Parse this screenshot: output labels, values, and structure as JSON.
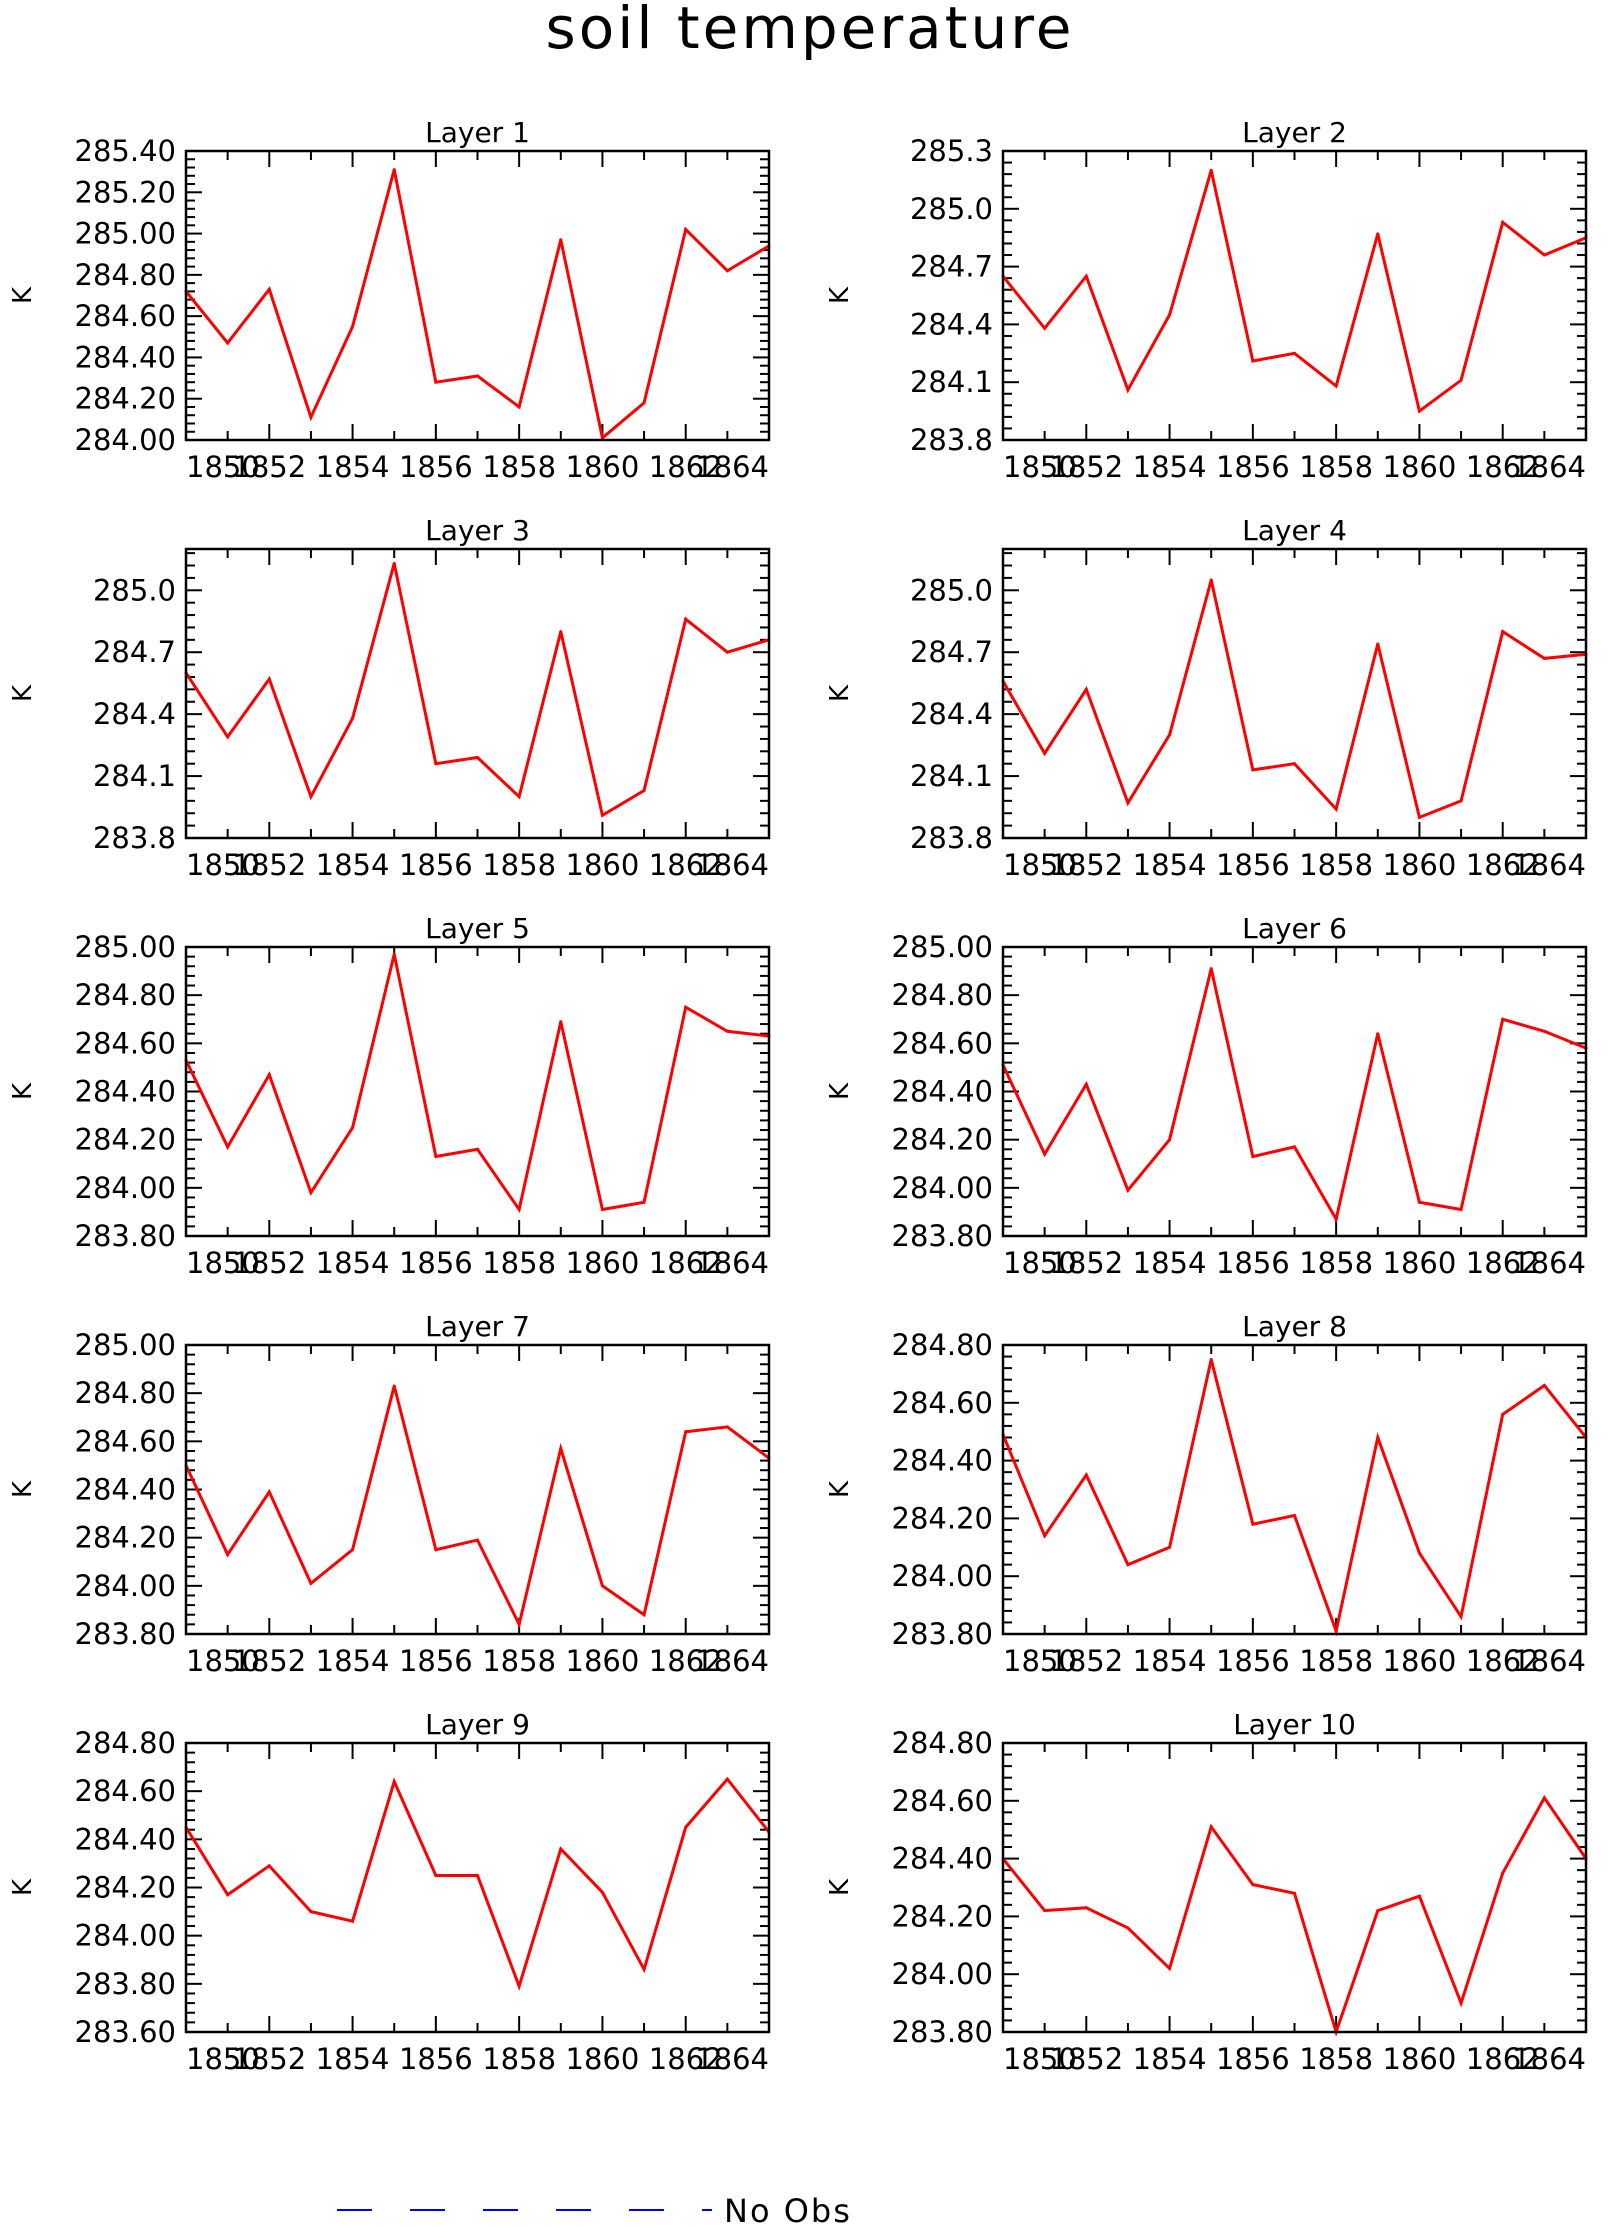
{
  "title": "soil temperature",
  "chart_data": [
    {
      "type": "line",
      "title": "Layer 1",
      "ylabel": "K",
      "x": [
        1850,
        1851,
        1852,
        1853,
        1854,
        1855,
        1856,
        1857,
        1858,
        1859,
        1860,
        1861,
        1862,
        1863,
        1864
      ],
      "series": [
        {
          "values": [
            284.72,
            284.47,
            284.73,
            284.11,
            284.55,
            285.31,
            284.28,
            284.31,
            284.16,
            284.97,
            284.01,
            284.18,
            285.02,
            284.82,
            284.94
          ]
        }
      ],
      "xlim": [
        1850,
        1864
      ],
      "xticks": [
        "1850",
        "1852",
        "1854",
        "1856",
        "1858",
        "1860",
        "1862",
        "1864"
      ],
      "ylim": [
        284.0,
        285.4
      ],
      "yticks": [
        "284.00",
        "284.20",
        "284.40",
        "284.60",
        "284.80",
        "285.00",
        "285.20",
        "285.40"
      ]
    },
    {
      "type": "line",
      "title": "Layer 2",
      "ylabel": "K",
      "x": [
        1850,
        1851,
        1852,
        1853,
        1854,
        1855,
        1856,
        1857,
        1858,
        1859,
        1860,
        1861,
        1862,
        1863,
        1864
      ],
      "series": [
        {
          "values": [
            284.65,
            284.38,
            284.65,
            284.06,
            284.45,
            285.2,
            284.21,
            284.25,
            284.08,
            284.87,
            283.95,
            284.11,
            284.93,
            284.76,
            284.85
          ]
        }
      ],
      "xlim": [
        1850,
        1864
      ],
      "xticks": [
        "1850",
        "1852",
        "1854",
        "1856",
        "1858",
        "1860",
        "1862",
        "1864"
      ],
      "ylim": [
        283.8,
        285.3
      ],
      "yticks": [
        "283.8",
        "284.1",
        "284.4",
        "284.7",
        "285.0",
        "285.3"
      ]
    },
    {
      "type": "line",
      "title": "Layer 3",
      "ylabel": "K",
      "x": [
        1850,
        1851,
        1852,
        1853,
        1854,
        1855,
        1856,
        1857,
        1858,
        1859,
        1860,
        1861,
        1862,
        1863,
        1864
      ],
      "series": [
        {
          "values": [
            284.6,
            284.29,
            284.57,
            284.0,
            284.38,
            285.13,
            284.16,
            284.19,
            284.0,
            284.8,
            283.91,
            284.03,
            284.86,
            284.7,
            284.76
          ]
        }
      ],
      "xlim": [
        1850,
        1864
      ],
      "xticks": [
        "1850",
        "1852",
        "1854",
        "1856",
        "1858",
        "1860",
        "1862",
        "1864"
      ],
      "ylim": [
        283.8,
        285.2
      ],
      "yticks": [
        "283.8",
        "284.1",
        "284.4",
        "284.7",
        "285.0"
      ]
    },
    {
      "type": "line",
      "title": "Layer 4",
      "ylabel": "K",
      "x": [
        1850,
        1851,
        1852,
        1853,
        1854,
        1855,
        1856,
        1857,
        1858,
        1859,
        1860,
        1861,
        1862,
        1863,
        1864
      ],
      "series": [
        {
          "values": [
            284.56,
            284.21,
            284.52,
            283.97,
            284.3,
            285.05,
            284.13,
            284.16,
            283.94,
            284.74,
            283.9,
            283.98,
            284.8,
            284.67,
            284.69
          ]
        }
      ],
      "xlim": [
        1850,
        1864
      ],
      "xticks": [
        "1850",
        "1852",
        "1854",
        "1856",
        "1858",
        "1860",
        "1862",
        "1864"
      ],
      "ylim": [
        283.8,
        285.2
      ],
      "yticks": [
        "283.8",
        "284.1",
        "284.4",
        "284.7",
        "285.0"
      ]
    },
    {
      "type": "line",
      "title": "Layer 5",
      "ylabel": "K",
      "x": [
        1850,
        1851,
        1852,
        1853,
        1854,
        1855,
        1856,
        1857,
        1858,
        1859,
        1860,
        1861,
        1862,
        1863,
        1864
      ],
      "series": [
        {
          "values": [
            284.53,
            284.17,
            284.47,
            283.98,
            284.25,
            284.97,
            284.13,
            284.16,
            283.91,
            284.69,
            283.91,
            283.94,
            284.75,
            284.65,
            284.63
          ]
        }
      ],
      "xlim": [
        1850,
        1864
      ],
      "xticks": [
        "1850",
        "1852",
        "1854",
        "1856",
        "1858",
        "1860",
        "1862",
        "1864"
      ],
      "ylim": [
        283.8,
        285.0
      ],
      "yticks": [
        "283.80",
        "284.00",
        "284.20",
        "284.40",
        "284.60",
        "284.80",
        "285.00"
      ]
    },
    {
      "type": "line",
      "title": "Layer 6",
      "ylabel": "K",
      "x": [
        1850,
        1851,
        1852,
        1853,
        1854,
        1855,
        1856,
        1857,
        1858,
        1859,
        1860,
        1861,
        1862,
        1863,
        1864
      ],
      "series": [
        {
          "values": [
            284.51,
            284.14,
            284.43,
            283.99,
            284.2,
            284.91,
            284.13,
            284.17,
            283.87,
            284.64,
            283.94,
            283.91,
            284.7,
            284.65,
            284.58
          ]
        }
      ],
      "xlim": [
        1850,
        1864
      ],
      "xticks": [
        "1850",
        "1852",
        "1854",
        "1856",
        "1858",
        "1860",
        "1862",
        "1864"
      ],
      "ylim": [
        283.8,
        285.0
      ],
      "yticks": [
        "283.80",
        "284.00",
        "284.20",
        "284.40",
        "284.60",
        "284.80",
        "285.00"
      ]
    },
    {
      "type": "line",
      "title": "Layer 7",
      "ylabel": "K",
      "x": [
        1850,
        1851,
        1852,
        1853,
        1854,
        1855,
        1856,
        1857,
        1858,
        1859,
        1860,
        1861,
        1862,
        1863,
        1864
      ],
      "series": [
        {
          "values": [
            284.5,
            284.13,
            284.39,
            284.01,
            284.15,
            284.83,
            284.15,
            284.19,
            283.84,
            284.57,
            284.0,
            283.88,
            284.64,
            284.66,
            284.53
          ]
        }
      ],
      "xlim": [
        1850,
        1864
      ],
      "xticks": [
        "1850",
        "1852",
        "1854",
        "1856",
        "1858",
        "1860",
        "1862",
        "1864"
      ],
      "ylim": [
        283.8,
        285.0
      ],
      "yticks": [
        "283.80",
        "284.00",
        "284.20",
        "284.40",
        "284.60",
        "284.80",
        "285.00"
      ]
    },
    {
      "type": "line",
      "title": "Layer 8",
      "ylabel": "K",
      "x": [
        1850,
        1851,
        1852,
        1853,
        1854,
        1855,
        1856,
        1857,
        1858,
        1859,
        1860,
        1861,
        1862,
        1863,
        1864
      ],
      "series": [
        {
          "values": [
            284.49,
            284.14,
            284.35,
            284.04,
            284.1,
            284.75,
            284.18,
            284.21,
            283.81,
            284.48,
            284.08,
            283.86,
            284.56,
            284.66,
            284.48
          ]
        }
      ],
      "xlim": [
        1850,
        1864
      ],
      "xticks": [
        "1850",
        "1852",
        "1854",
        "1856",
        "1858",
        "1860",
        "1862",
        "1864"
      ],
      "ylim": [
        283.8,
        284.8
      ],
      "yticks": [
        "283.80",
        "284.00",
        "284.20",
        "284.40",
        "284.60",
        "284.80"
      ]
    },
    {
      "type": "line",
      "title": "Layer 9",
      "ylabel": "K",
      "x": [
        1850,
        1851,
        1852,
        1853,
        1854,
        1855,
        1856,
        1857,
        1858,
        1859,
        1860,
        1861,
        1862,
        1863,
        1864
      ],
      "series": [
        {
          "values": [
            284.45,
            284.17,
            284.29,
            284.1,
            284.06,
            284.64,
            284.25,
            284.25,
            283.79,
            284.36,
            284.18,
            283.86,
            284.45,
            284.65,
            284.43
          ]
        }
      ],
      "xlim": [
        1850,
        1864
      ],
      "xticks": [
        "1850",
        "1852",
        "1854",
        "1856",
        "1858",
        "1860",
        "1862",
        "1864"
      ],
      "ylim": [
        283.6,
        284.8
      ],
      "yticks": [
        "283.60",
        "283.80",
        "284.00",
        "284.20",
        "284.40",
        "284.60",
        "284.80"
      ]
    },
    {
      "type": "line",
      "title": "Layer 10",
      "ylabel": "K",
      "x": [
        1850,
        1851,
        1852,
        1853,
        1854,
        1855,
        1856,
        1857,
        1858,
        1859,
        1860,
        1861,
        1862,
        1863,
        1864
      ],
      "series": [
        {
          "values": [
            284.4,
            284.22,
            284.23,
            284.16,
            284.02,
            284.51,
            284.31,
            284.28,
            283.8,
            284.22,
            284.27,
            283.9,
            284.35,
            284.61,
            284.4
          ]
        }
      ],
      "xlim": [
        1850,
        1864
      ],
      "xticks": [
        "1850",
        "1852",
        "1854",
        "1856",
        "1858",
        "1860",
        "1862",
        "1864"
      ],
      "ylim": [
        283.8,
        284.8
      ],
      "yticks": [
        "283.80",
        "284.00",
        "284.20",
        "284.40",
        "284.60",
        "284.80"
      ]
    }
  ],
  "legend": {
    "label": "No Obs",
    "line_color": "#0000ff"
  },
  "colors": {
    "series": "#ff0000",
    "axis": "#000000"
  }
}
